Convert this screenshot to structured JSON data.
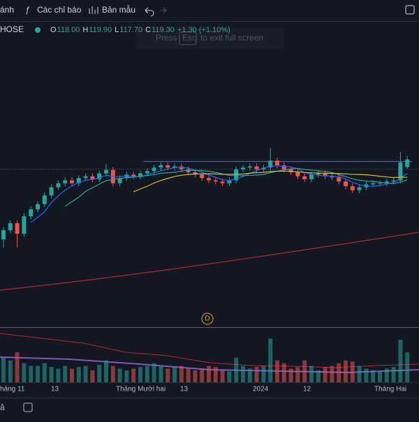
{
  "toolbar": {
    "items": [
      "ánh",
      "Các chỉ báo",
      "Bản mẫu"
    ]
  },
  "legend": {
    "symbol": "HOSE",
    "open_label": "O",
    "open": "118.00",
    "high_label": "H",
    "high": "119.90",
    "low_label": "L",
    "low": "117.70",
    "close_label": "C",
    "close": "119.30",
    "change": "+1.30 (+1.10%)"
  },
  "overlay": {
    "press": "Press",
    "key": "Esc",
    "rest": "to exit full screen"
  },
  "marker": "D",
  "x_axis": {
    "labels": [
      "háng 11",
      "13",
      "Tháng Mười hai",
      "13",
      "2024",
      "12",
      "Tháng Hai"
    ]
  },
  "bottom": {
    "label": "ả"
  },
  "chart_data": {
    "type": "candlestick",
    "ylim": [
      90.5,
      142
    ],
    "vlim": [
      0,
      100
    ],
    "up_color": "#26a69a",
    "down_color": "#ef5350",
    "open": [
      105.5,
      107.1,
      108.3,
      106.5,
      109.5,
      110.7,
      111.6,
      113.1,
      114.5,
      115.2,
      115.7,
      115.2,
      116.1,
      116.4,
      115.9,
      116.9,
      117.5,
      115.2,
      116.1,
      116.7,
      116.4,
      116.9,
      117.3,
      117.9,
      118.3,
      117.9,
      118.1,
      117.6,
      117.1,
      116.7,
      116.1,
      115.7,
      115.5,
      115.2,
      115.7,
      117.6,
      117.9,
      118.1,
      117.6,
      117.9,
      119.1,
      118.3,
      117.6,
      117.1,
      116.4,
      115.9,
      116.7,
      116.9,
      116.4,
      116.2,
      115.5,
      114.7,
      114.0,
      114.5,
      115.0,
      115.2,
      115.2,
      115.5,
      115.7,
      118.0
    ],
    "high": [
      107.6,
      108.8,
      108.8,
      110.0,
      111.2,
      112.1,
      113.6,
      115.0,
      115.7,
      116.2,
      116.2,
      116.6,
      116.9,
      116.9,
      117.4,
      118.5,
      118.0,
      116.6,
      117.2,
      117.2,
      117.4,
      117.8,
      118.4,
      118.8,
      118.8,
      118.6,
      118.6,
      118.1,
      117.6,
      117.2,
      116.6,
      116.2,
      116.0,
      116.2,
      118.1,
      118.4,
      118.6,
      118.6,
      118.4,
      121.3,
      119.6,
      118.8,
      118.1,
      117.6,
      116.9,
      117.2,
      117.4,
      117.4,
      116.9,
      116.7,
      116.0,
      115.2,
      115.0,
      115.5,
      115.7,
      115.7,
      116.0,
      116.2,
      120.6,
      119.9
    ],
    "low": [
      104.1,
      106.6,
      104.1,
      106.0,
      109.0,
      110.2,
      111.1,
      112.6,
      114.0,
      114.7,
      114.7,
      114.7,
      115.6,
      115.4,
      115.4,
      116.4,
      114.7,
      114.7,
      115.6,
      115.9,
      115.9,
      116.4,
      116.8,
      117.4,
      117.4,
      117.4,
      117.1,
      116.6,
      116.2,
      115.6,
      115.2,
      115.0,
      114.7,
      114.7,
      115.2,
      117.1,
      117.4,
      117.1,
      117.1,
      117.4,
      117.8,
      117.1,
      116.6,
      115.9,
      115.4,
      115.4,
      116.2,
      115.9,
      115.7,
      115.0,
      114.2,
      113.5,
      113.5,
      114.0,
      114.5,
      114.7,
      114.7,
      115.0,
      115.2,
      117.7
    ],
    "close": [
      107.1,
      108.3,
      106.5,
      109.5,
      110.7,
      111.6,
      113.1,
      114.5,
      115.2,
      115.7,
      115.2,
      116.1,
      116.4,
      115.9,
      116.9,
      117.5,
      115.2,
      116.1,
      116.7,
      116.4,
      116.9,
      117.3,
      117.9,
      118.3,
      117.9,
      118.1,
      117.6,
      117.1,
      116.7,
      116.1,
      115.7,
      115.5,
      115.2,
      115.7,
      117.6,
      117.9,
      118.1,
      117.6,
      117.9,
      119.1,
      118.3,
      117.6,
      117.1,
      116.4,
      115.9,
      116.7,
      116.9,
      116.4,
      116.2,
      115.5,
      114.7,
      114.0,
      114.5,
      115.0,
      115.2,
      115.2,
      115.5,
      115.7,
      118.8,
      119.3
    ],
    "volume": [
      45,
      40,
      55,
      35,
      30,
      30,
      35,
      28,
      25,
      30,
      25,
      28,
      30,
      22,
      32,
      40,
      30,
      25,
      22,
      25,
      28,
      30,
      35,
      30,
      25,
      28,
      30,
      25,
      22,
      25,
      30,
      28,
      22,
      20,
      45,
      30,
      25,
      28,
      30,
      80,
      40,
      35,
      25,
      28,
      40,
      30,
      22,
      28,
      30,
      35,
      40,
      38,
      30,
      25,
      22,
      20,
      25,
      28,
      78,
      55
    ]
  }
}
